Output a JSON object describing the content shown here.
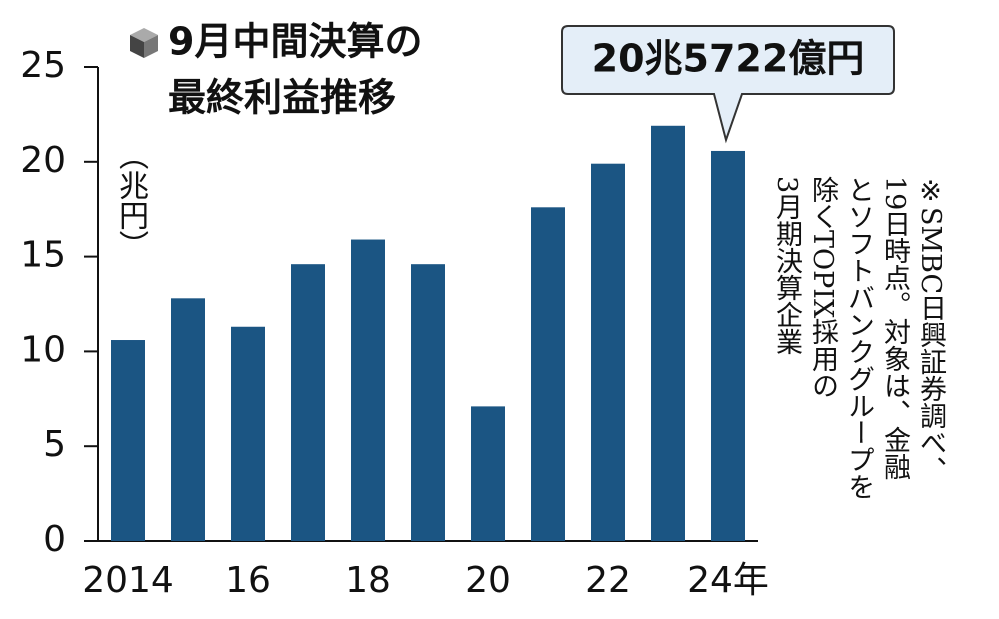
{
  "chart_data": {
    "type": "bar",
    "title": [
      "9月中間決算の",
      "最終利益推移"
    ],
    "y_label": "（兆円）",
    "annotation": "20兆5722億円",
    "note": [
      "※SMBC日興証券調べ、",
      "19日時点。対象は、金融",
      "とソフトバンクグループを",
      "除くTOPIX採用の",
      "3月期決算企業"
    ],
    "categories": [
      "2014",
      null,
      "16",
      null,
      "18",
      null,
      "20",
      null,
      "22",
      null,
      "24年"
    ],
    "values": [
      10.6,
      12.8,
      11.3,
      14.6,
      15.9,
      14.6,
      7.1,
      17.6,
      19.9,
      21.9,
      20.5722
    ],
    "color": "#1b5583",
    "ylim": [
      0,
      25
    ],
    "yticks": [
      0,
      5,
      10,
      15,
      20,
      25
    ]
  }
}
